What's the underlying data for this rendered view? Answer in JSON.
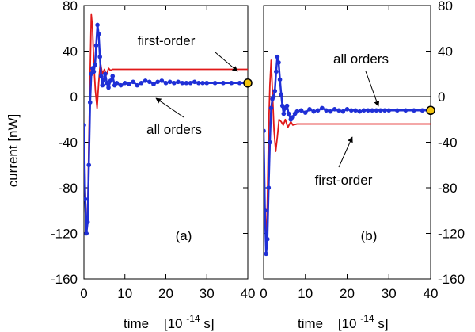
{
  "chart_data": [
    {
      "type": "line",
      "panel_label": "(a)",
      "xlabel_main": "time",
      "xlabel_unit_prefix": "[10",
      "xlabel_unit_exp": "-14",
      "xlabel_unit_suffix": " s]",
      "ylabel": "current   [nW]",
      "xlim": [
        0,
        40
      ],
      "ylim": [
        -160,
        80
      ],
      "xticks": [
        0,
        10,
        20,
        30,
        40
      ],
      "yticks": [
        80,
        40,
        0,
        -40,
        -80,
        -120,
        -160
      ],
      "xtick_labels": [
        "0",
        "10",
        "20",
        "30",
        "40"
      ],
      "ytick_labels": [
        "80",
        "40",
        "0",
        "-40",
        "-80",
        "-120",
        "-160"
      ],
      "zero_line": true,
      "end_marker": {
        "x": 40,
        "y": 12,
        "color": "#f2c40f"
      },
      "series": [
        {
          "name": "first-order",
          "color": "#e11919",
          "x": [
            0,
            0.3,
            0.6,
            0.9,
            1.2,
            1.5,
            1.8,
            2.1,
            2.4,
            2.8,
            3.2,
            3.6,
            4.0,
            4.5,
            5.0,
            5.5,
            6.0,
            6.5,
            7.0,
            8.0,
            10,
            15,
            20,
            30,
            40
          ],
          "y": [
            -35,
            -80,
            -112,
            -105,
            -40,
            20,
            72,
            60,
            30,
            5,
            -10,
            12,
            30,
            20,
            24,
            19,
            25,
            23,
            24,
            24,
            24,
            24,
            24,
            24,
            24
          ]
        },
        {
          "name": "all orders",
          "color": "#1f2fd6",
          "x": [
            0,
            0.3,
            0.6,
            0.9,
            1.2,
            1.5,
            1.8,
            2.1,
            2.4,
            2.7,
            3.0,
            3.3,
            3.6,
            3.9,
            4.2,
            4.5,
            4.8,
            5.2,
            5.6,
            6.0,
            6.5,
            7.0,
            7.5,
            8.0,
            9,
            10,
            11,
            12,
            13,
            14,
            15,
            16,
            17,
            18,
            19,
            20,
            21,
            22,
            23,
            24,
            25,
            26,
            27,
            28,
            29,
            30,
            32,
            34,
            36,
            38,
            40
          ],
          "y": [
            -25,
            -90,
            -120,
            -110,
            -60,
            -5,
            20,
            25,
            22,
            28,
            45,
            63,
            55,
            35,
            18,
            10,
            15,
            20,
            12,
            8,
            14,
            18,
            10,
            12,
            10,
            12,
            11,
            13,
            10,
            12,
            14,
            13,
            11,
            13,
            14,
            12,
            13,
            12,
            13,
            12,
            12,
            12,
            13,
            12,
            12,
            12,
            12,
            12,
            12,
            12,
            12
          ]
        }
      ],
      "annotations": [
        {
          "text": "first-order",
          "target": [
            30,
            24
          ]
        },
        {
          "text": "all orders",
          "target": [
            16,
            14
          ]
        }
      ]
    },
    {
      "type": "line",
      "panel_label": "(b)",
      "xlabel_main": "time",
      "xlabel_unit_prefix": "[10",
      "xlabel_unit_exp": "-14",
      "xlabel_unit_suffix": " s]",
      "xlim": [
        0,
        40
      ],
      "ylim": [
        -160,
        80
      ],
      "xticks": [
        0,
        10,
        20,
        30,
        40
      ],
      "yticks": [
        80,
        40,
        0,
        -40,
        -80,
        -120,
        -160
      ],
      "xtick_labels": [
        "0",
        "10",
        "20",
        "30",
        "40"
      ],
      "ytick_labels": [
        "80",
        "40",
        "0",
        "-40",
        "-80",
        "-120",
        "-160"
      ],
      "zero_line": true,
      "end_marker": {
        "x": 40,
        "y": -12,
        "color": "#f2c40f"
      },
      "series": [
        {
          "name": "first-order",
          "color": "#e11919",
          "x": [
            0,
            0.3,
            0.6,
            0.9,
            1.2,
            1.5,
            1.8,
            2.1,
            2.5,
            2.9,
            3.3,
            3.7,
            4.2,
            4.7,
            5.2,
            5.8,
            6.5,
            7.0,
            8.0,
            10,
            15,
            20,
            30,
            40
          ],
          "y": [
            -30,
            -95,
            -130,
            -95,
            -30,
            10,
            32,
            5,
            -30,
            -48,
            -35,
            -20,
            -22,
            -25,
            -20,
            -27,
            -22,
            -25,
            -24,
            -24,
            -24,
            -24,
            -24,
            -24
          ]
        },
        {
          "name": "all orders",
          "color": "#1f2fd6",
          "x": [
            0,
            0.3,
            0.6,
            0.9,
            1.2,
            1.5,
            1.8,
            2.1,
            2.4,
            2.7,
            3.0,
            3.3,
            3.6,
            3.9,
            4.2,
            4.5,
            4.8,
            5.2,
            5.6,
            6.0,
            6.5,
            7.0,
            7.5,
            8.0,
            9,
            10,
            11,
            12,
            13,
            14,
            15,
            16,
            17,
            18,
            19,
            20,
            21,
            22,
            23,
            24,
            25,
            26,
            27,
            28,
            29,
            30,
            32,
            34,
            36,
            38,
            40
          ],
          "y": [
            -30,
            -100,
            -138,
            -125,
            -80,
            -40,
            -10,
            -2,
            0,
            5,
            22,
            35,
            30,
            15,
            2,
            -8,
            -15,
            -10,
            -8,
            -15,
            -20,
            -18,
            -15,
            -13,
            -12,
            -14,
            -11,
            -13,
            -12,
            -10,
            -12,
            -13,
            -11,
            -12,
            -13,
            -11,
            -12,
            -12,
            -13,
            -12,
            -12,
            -12,
            -12,
            -12,
            -12,
            -12,
            -12,
            -12,
            -12,
            -12,
            -12
          ]
        }
      ],
      "annotations": [
        {
          "text": "all orders",
          "target": [
            26,
            -8
          ]
        },
        {
          "text": "first-order",
          "target": [
            24,
            -26
          ]
        }
      ]
    }
  ]
}
